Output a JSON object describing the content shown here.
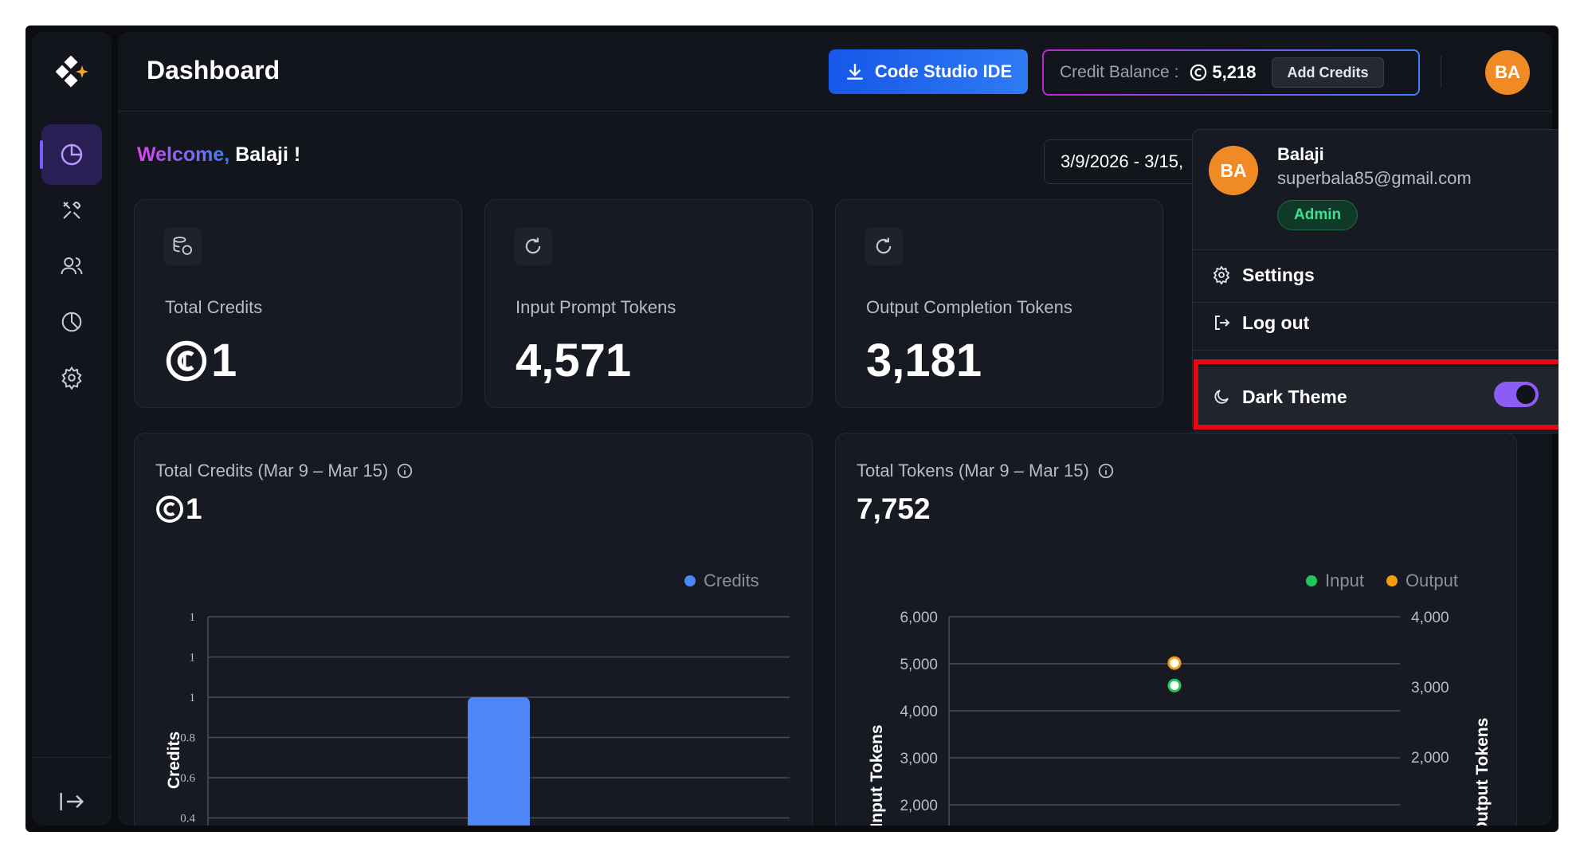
{
  "header": {
    "title": "Dashboard",
    "ide_button": "Code Studio IDE",
    "credit_label": "Credit Balance :",
    "credit_value": "5,218",
    "add_credits": "Add Credits",
    "avatar_initials": "BA"
  },
  "welcome": {
    "greeting": "Welcome,",
    "name": "Balaji !"
  },
  "date_range": "3/9/2026 - 3/15,",
  "sidebar": {
    "items": [
      {
        "name": "dashboard",
        "icon": "pie-chart-icon",
        "active": true
      },
      {
        "name": "tools",
        "icon": "tools-icon"
      },
      {
        "name": "users",
        "icon": "users-icon"
      },
      {
        "name": "analytics",
        "icon": "pie-chart-icon"
      },
      {
        "name": "settings",
        "icon": "gear-icon"
      }
    ],
    "logout_icon": "logout-icon"
  },
  "stats": [
    {
      "label": "Total Credits",
      "value": "1",
      "icon": "coins-icon"
    },
    {
      "label": "Input Prompt Tokens",
      "value": "4,571",
      "icon": "refresh-icon"
    },
    {
      "label": "Output Completion Tokens",
      "value": "3,181",
      "icon": "refresh-icon"
    }
  ],
  "charts": {
    "credits": {
      "title": "Total Credits (Mar 9 – Mar 15)",
      "total": "1"
    },
    "tokens": {
      "title": "Total Tokens (Mar 9 – Mar 15)",
      "total": "7,752"
    }
  },
  "chart_data": [
    {
      "type": "bar",
      "title": "Total Credits (Mar 9 – Mar 15)",
      "ylabel": "Credits",
      "legend": [
        "Credits"
      ],
      "series": [
        {
          "name": "Credits",
          "values": [
            1
          ]
        }
      ],
      "y_tick_labels": [
        "1",
        "1",
        "1",
        "0.8",
        "0.6",
        "0.4"
      ],
      "colors": {
        "Credits": "#4d86f7"
      }
    },
    {
      "type": "scatter",
      "title": "Total Tokens (Mar 9 – Mar 15)",
      "ylabel": "Input Tokens",
      "y2label": "Output Tokens",
      "legend": [
        "Input",
        "Output"
      ],
      "series": [
        {
          "name": "Input",
          "values": [
            4571
          ]
        },
        {
          "name": "Output",
          "values": [
            3181
          ]
        }
      ],
      "y_ticks": [
        "6,000",
        "5,000",
        "4,000",
        "3,000",
        "2,000"
      ],
      "y2_ticks": [
        "4,000",
        "3,000",
        "2,000"
      ],
      "ylim": [
        1000,
        6000
      ],
      "y2lim": [
        1000,
        4000
      ],
      "colors": {
        "Input": "#22c55e",
        "Output": "#f59e0b"
      }
    }
  ],
  "dropdown": {
    "avatar_initials": "BA",
    "name": "Balaji",
    "email": "superbala85@gmail.com",
    "role": "Admin",
    "settings": "Settings",
    "logout": "Log out",
    "dark_theme": "Dark Theme",
    "dark_theme_on": true
  }
}
